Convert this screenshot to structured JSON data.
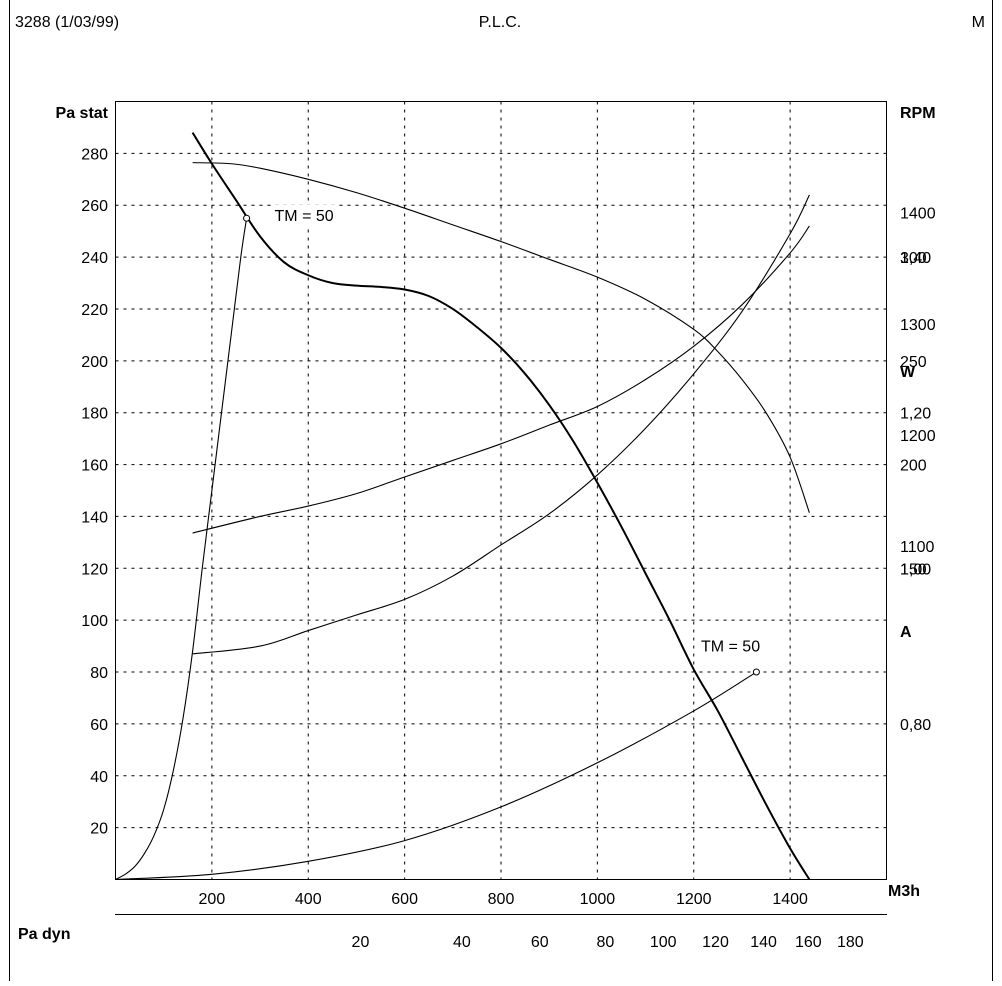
{
  "header": {
    "code": "3288 (1/03/99)",
    "model": "P.L.C.",
    "mark": "M"
  },
  "chart_data": {
    "type": "line",
    "x_axis": {
      "label": "M3h",
      "range": [
        0,
        1600
      ],
      "ticks": [
        200,
        400,
        600,
        800,
        1000,
        1200,
        1400
      ],
      "tick_labels": [
        "200",
        "400",
        "600",
        "800",
        "1000",
        "1200",
        "1400"
      ]
    },
    "secondary_x_axis": {
      "label": "Pa dyn",
      "ticks": [
        20,
        40,
        60,
        80,
        100,
        120,
        140,
        160,
        180
      ],
      "tick_labels": [
        "20",
        "40",
        "60",
        "80",
        "100",
        "120",
        "140",
        "160",
        "180"
      ]
    },
    "y_axis": {
      "label": "Pa stat",
      "range": [
        0,
        300
      ],
      "ticks": [
        20,
        40,
        60,
        80,
        100,
        120,
        140,
        160,
        180,
        200,
        220,
        240,
        260,
        280
      ],
      "tick_labels": [
        "20",
        "40",
        "60",
        "80",
        "100",
        "120",
        "140",
        "160",
        "180",
        "200",
        "220",
        "240",
        "260",
        "280"
      ]
    },
    "right_axes": [
      {
        "label": "RPM",
        "range": [
          800,
          1500
        ],
        "ticks": [
          1100,
          1200,
          1300,
          1400
        ],
        "tick_labels": [
          "1100",
          "1200",
          "1300",
          "1400"
        ]
      },
      {
        "label": "W",
        "range": [
          0,
          375
        ],
        "ticks": [
          150,
          200,
          250,
          300
        ],
        "tick_labels": [
          "150",
          "200",
          "250",
          "300"
        ]
      },
      {
        "label": "A",
        "range": [
          0.6,
          1.6
        ],
        "ticks": [
          0.8,
          1.0,
          1.2,
          1.4
        ],
        "tick_labels": [
          "0,80",
          "1,00",
          "1,20",
          "1,40"
        ]
      }
    ],
    "grid": true,
    "series": [
      {
        "role": "static pressure",
        "axis": "Pa stat",
        "style": "thick",
        "x": [
          160,
          200,
          250,
          300,
          350,
          400,
          450,
          500,
          550,
          600,
          650,
          700,
          750,
          800,
          850,
          900,
          950,
          1000,
          1050,
          1100,
          1150,
          1200,
          1250,
          1300,
          1350,
          1400,
          1440
        ],
        "y": [
          288,
          276,
          262,
          248,
          238,
          233,
          230,
          229,
          228.5,
          227.5,
          225,
          220,
          213,
          205,
          195,
          183,
          169,
          153,
          136,
          118,
          100,
          81,
          65,
          47,
          29,
          12,
          0
        ]
      },
      {
        "role": "speed",
        "axis": "RPM",
        "style": "thin",
        "x": [
          160,
          240,
          300,
          400,
          500,
          600,
          700,
          800,
          900,
          1000,
          1100,
          1200,
          1250,
          1300,
          1350,
          1400,
          1440
        ],
        "y": [
          1445,
          1444,
          1440,
          1430,
          1418,
          1404,
          1389,
          1374,
          1358,
          1342,
          1322,
          1295,
          1275,
          1250,
          1220,
          1180,
          1130
        ]
      },
      {
        "role": "power",
        "axis": "W",
        "style": "thin",
        "x": [
          160,
          300,
          400,
          500,
          600,
          700,
          800,
          900,
          1000,
          1100,
          1200,
          1300,
          1400,
          1440
        ],
        "y": [
          167,
          175,
          180,
          186,
          194,
          202,
          210,
          219,
          228,
          241,
          257,
          277,
          302,
          315
        ]
      },
      {
        "role": "current",
        "axis": "A",
        "style": "thin",
        "x": [
          160,
          300,
          400,
          500,
          600,
          700,
          800,
          900,
          1000,
          1100,
          1200,
          1300,
          1400,
          1440
        ],
        "y": [
          0.89,
          0.9,
          0.92,
          0.94,
          0.96,
          0.99,
          1.03,
          1.07,
          1.12,
          1.18,
          1.25,
          1.33,
          1.43,
          1.48
        ]
      },
      {
        "role": "installation curve TM = 50 (upper)",
        "axis": "Pa stat",
        "style": "thin",
        "x": [
          0,
          20,
          40,
          60,
          80,
          100,
          120,
          140,
          160,
          180,
          200,
          220,
          240,
          260,
          272
        ],
        "y": [
          0,
          2,
          5,
          10,
          17,
          27,
          42,
          62,
          88,
          120,
          150,
          180,
          210,
          240,
          255
        ]
      },
      {
        "role": "installation curve TM = 50 (lower)",
        "axis": "Pa stat",
        "style": "thin",
        "x": [
          0,
          200,
          400,
          600,
          800,
          1000,
          1200,
          1330
        ],
        "y": [
          0,
          2,
          7,
          15,
          28,
          45,
          65,
          80
        ]
      }
    ],
    "annotations": [
      {
        "text": "TM = 50",
        "x": 330,
        "y": 254
      },
      {
        "text": "TM = 50",
        "x": 1215,
        "y": 88
      }
    ],
    "markers": [
      {
        "x": 272,
        "y": 255
      },
      {
        "x": 1330,
        "y": 80
      }
    ]
  }
}
